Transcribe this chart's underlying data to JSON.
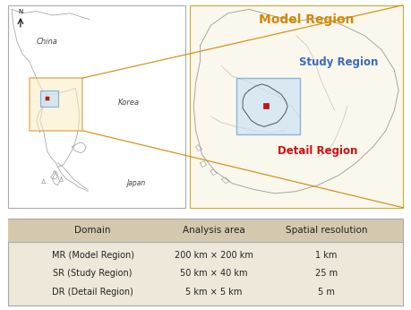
{
  "table_headers": [
    "Domain",
    "Analysis area",
    "Spatial resolution"
  ],
  "table_rows": [
    [
      "MR (Model Region)",
      "200 km × 200 km",
      "1 km"
    ],
    [
      "SR (Study Region)",
      "50 km × 40 km",
      "25 m"
    ],
    [
      "DR (Detail Region)",
      "5 km × 5 km",
      "5 m"
    ]
  ],
  "header_bg": "#d4c9ae",
  "table_outer_bg": "#ede8da",
  "border_color": "#aaaaaa",
  "map_left_bg": "#ffffff",
  "map_right_bg": "#faf7ec",
  "map_right_border": "#d4a830",
  "map_left_border": "#aaaaaa",
  "label_model_region": "Model Region",
  "label_study_region": "Study Region",
  "label_detail_region": "Detail Region",
  "label_model_color": "#d4880a",
  "label_study_color": "#3a6bbf",
  "label_detail_color": "#cc1111",
  "label_china": "China",
  "label_korea": "Korea",
  "label_japan": "Japan",
  "coastline_color": "#999999",
  "orange_box_color": "#d4880a",
  "orange_box_fill": "#faecc0",
  "blue_box_color": "#5599cc",
  "blue_box_fill": "#c8e0f4",
  "red_dot_color": "#cc1111",
  "coast_lw": 0.5,
  "map_border_lw": 0.8
}
